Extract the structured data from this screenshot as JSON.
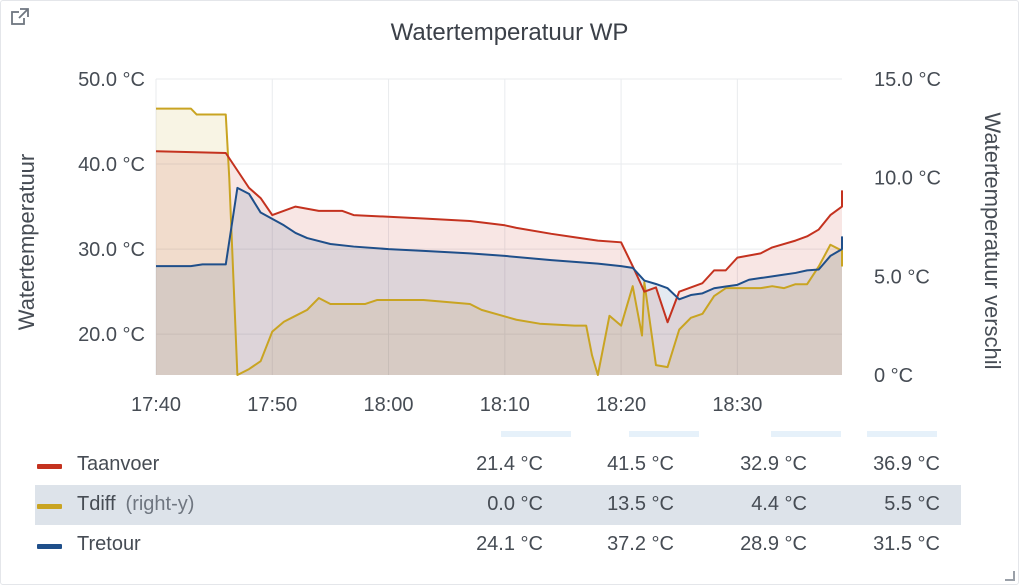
{
  "panel": {
    "title": "Watertemperatuur WP",
    "icons": {
      "link": "external-link-icon",
      "resize": "resize-handle-icon"
    }
  },
  "chart_data": {
    "type": "area",
    "title": "Watertemperatuur WP",
    "ylabel_left": "Watertemperatuur",
    "ylabel_right": "Watertemperatuur verschil",
    "x_ticks": [
      "17:40",
      "17:50",
      "18:00",
      "18:10",
      "18:20",
      "18:30"
    ],
    "y_left_ticks": [
      "20.0 °C",
      "30.0 °C",
      "40.0 °C",
      "50.0 °C"
    ],
    "y_right_ticks": [
      "0 °C",
      "5.0 °C",
      "10.0 °C",
      "15.0 °C"
    ],
    "y_left_range": [
      15.2,
      50
    ],
    "y_right_range": [
      0,
      15
    ],
    "x_range_minutes": [
      0,
      59
    ],
    "grid": true,
    "legend_placement": "bottom",
    "series": [
      {
        "name": "Taanvoer",
        "axis": "left",
        "color": "#c4321f",
        "points": [
          [
            0,
            41.5
          ],
          [
            6,
            41.3
          ],
          [
            8,
            37.2
          ],
          [
            9,
            36.0
          ],
          [
            10,
            34.0
          ],
          [
            12,
            35.0
          ],
          [
            14,
            34.5
          ],
          [
            16,
            34.5
          ],
          [
            17,
            34.0
          ],
          [
            20,
            33.8
          ],
          [
            23,
            33.6
          ],
          [
            27,
            33.3
          ],
          [
            30,
            32.8
          ],
          [
            31,
            32.5
          ],
          [
            34,
            31.8
          ],
          [
            36,
            31.4
          ],
          [
            38,
            31.0
          ],
          [
            40,
            30.8
          ],
          [
            41,
            28.0
          ],
          [
            42,
            25.0
          ],
          [
            43,
            25.5
          ],
          [
            44,
            21.4
          ],
          [
            45,
            25.0
          ],
          [
            47,
            26.0
          ],
          [
            48,
            27.5
          ],
          [
            49,
            27.5
          ],
          [
            50,
            29.0
          ],
          [
            52,
            29.5
          ],
          [
            53,
            30.2
          ],
          [
            55,
            31.0
          ],
          [
            56,
            31.5
          ],
          [
            57,
            32.3
          ],
          [
            58,
            34.0
          ],
          [
            59,
            35.0
          ],
          [
            60,
            36.9
          ],
          [
            61,
            36.9
          ]
        ]
      },
      {
        "name": "Tdiff",
        "axis": "right",
        "color": "#c9a422",
        "points": [
          [
            0,
            13.5
          ],
          [
            3,
            13.5
          ],
          [
            3.5,
            13.2
          ],
          [
            6,
            13.2
          ],
          [
            6.3,
            10.0
          ],
          [
            7,
            0.0
          ],
          [
            8,
            0.3
          ],
          [
            9,
            0.7
          ],
          [
            10,
            2.2
          ],
          [
            11,
            2.7
          ],
          [
            12,
            3.0
          ],
          [
            13,
            3.3
          ],
          [
            14,
            3.9
          ],
          [
            15,
            3.6
          ],
          [
            17,
            3.6
          ],
          [
            18,
            3.6
          ],
          [
            19,
            3.8
          ],
          [
            20,
            3.8
          ],
          [
            23,
            3.8
          ],
          [
            27,
            3.6
          ],
          [
            28,
            3.3
          ],
          [
            31,
            2.8
          ],
          [
            33,
            2.6
          ],
          [
            36,
            2.5
          ],
          [
            37,
            2.5
          ],
          [
            37.5,
            1.0
          ],
          [
            38,
            0.0
          ],
          [
            38.5,
            1.5
          ],
          [
            39,
            3.0
          ],
          [
            40,
            2.5
          ],
          [
            41,
            4.5
          ],
          [
            41.8,
            2.0
          ],
          [
            42,
            4.7
          ],
          [
            43,
            0.5
          ],
          [
            44,
            0.4
          ],
          [
            45,
            2.3
          ],
          [
            46,
            2.9
          ],
          [
            47,
            3.1
          ],
          [
            48,
            4.0
          ],
          [
            49,
            4.4
          ],
          [
            52,
            4.4
          ],
          [
            53,
            4.5
          ],
          [
            54,
            4.4
          ],
          [
            55,
            4.6
          ],
          [
            56,
            4.6
          ],
          [
            57,
            5.5
          ],
          [
            58,
            6.6
          ],
          [
            59,
            6.3
          ],
          [
            60,
            5.5
          ],
          [
            61,
            5.5
          ]
        ]
      },
      {
        "name": "Tretour",
        "axis": "left",
        "color": "#1f4f8a",
        "points": [
          [
            0,
            28.0
          ],
          [
            3,
            28.0
          ],
          [
            4,
            28.2
          ],
          [
            6,
            28.2
          ],
          [
            7,
            37.2
          ],
          [
            8,
            36.5
          ],
          [
            9,
            34.3
          ],
          [
            11,
            32.8
          ],
          [
            12,
            31.9
          ],
          [
            13,
            31.3
          ],
          [
            15,
            30.6
          ],
          [
            17,
            30.3
          ],
          [
            20,
            30.0
          ],
          [
            23,
            29.8
          ],
          [
            27,
            29.5
          ],
          [
            30,
            29.2
          ],
          [
            34,
            28.7
          ],
          [
            36,
            28.5
          ],
          [
            38,
            28.3
          ],
          [
            40,
            28.0
          ],
          [
            41,
            27.8
          ],
          [
            42,
            26.3
          ],
          [
            43,
            25.9
          ],
          [
            44,
            25.4
          ],
          [
            45,
            24.1
          ],
          [
            46,
            24.6
          ],
          [
            47,
            24.8
          ],
          [
            48,
            25.4
          ],
          [
            49,
            25.6
          ],
          [
            50,
            25.8
          ],
          [
            51,
            26.4
          ],
          [
            52,
            26.6
          ],
          [
            53,
            26.8
          ],
          [
            54,
            27.0
          ],
          [
            55,
            27.2
          ],
          [
            56,
            27.5
          ],
          [
            57,
            27.6
          ],
          [
            58,
            29.2
          ],
          [
            59,
            30.0
          ],
          [
            60,
            31.5
          ],
          [
            61,
            31.5
          ]
        ]
      }
    ]
  },
  "legend": {
    "series": [
      {
        "name": "Taanvoer",
        "axis_note": "",
        "color": "#c4321f",
        "min": "21.4 °C",
        "max": "41.5 °C",
        "avg": "32.9 °C",
        "current": "36.9 °C"
      },
      {
        "name": "Tdiff",
        "axis_note": "(right-y)",
        "color": "#c9a422",
        "min": "0.0 °C",
        "max": "13.5 °C",
        "avg": "4.4 °C",
        "current": "5.5 °C"
      },
      {
        "name": "Tretour",
        "axis_note": "",
        "color": "#1f4f8a",
        "min": "24.1 °C",
        "max": "37.2 °C",
        "avg": "28.9 °C",
        "current": "31.5 °C"
      }
    ]
  }
}
